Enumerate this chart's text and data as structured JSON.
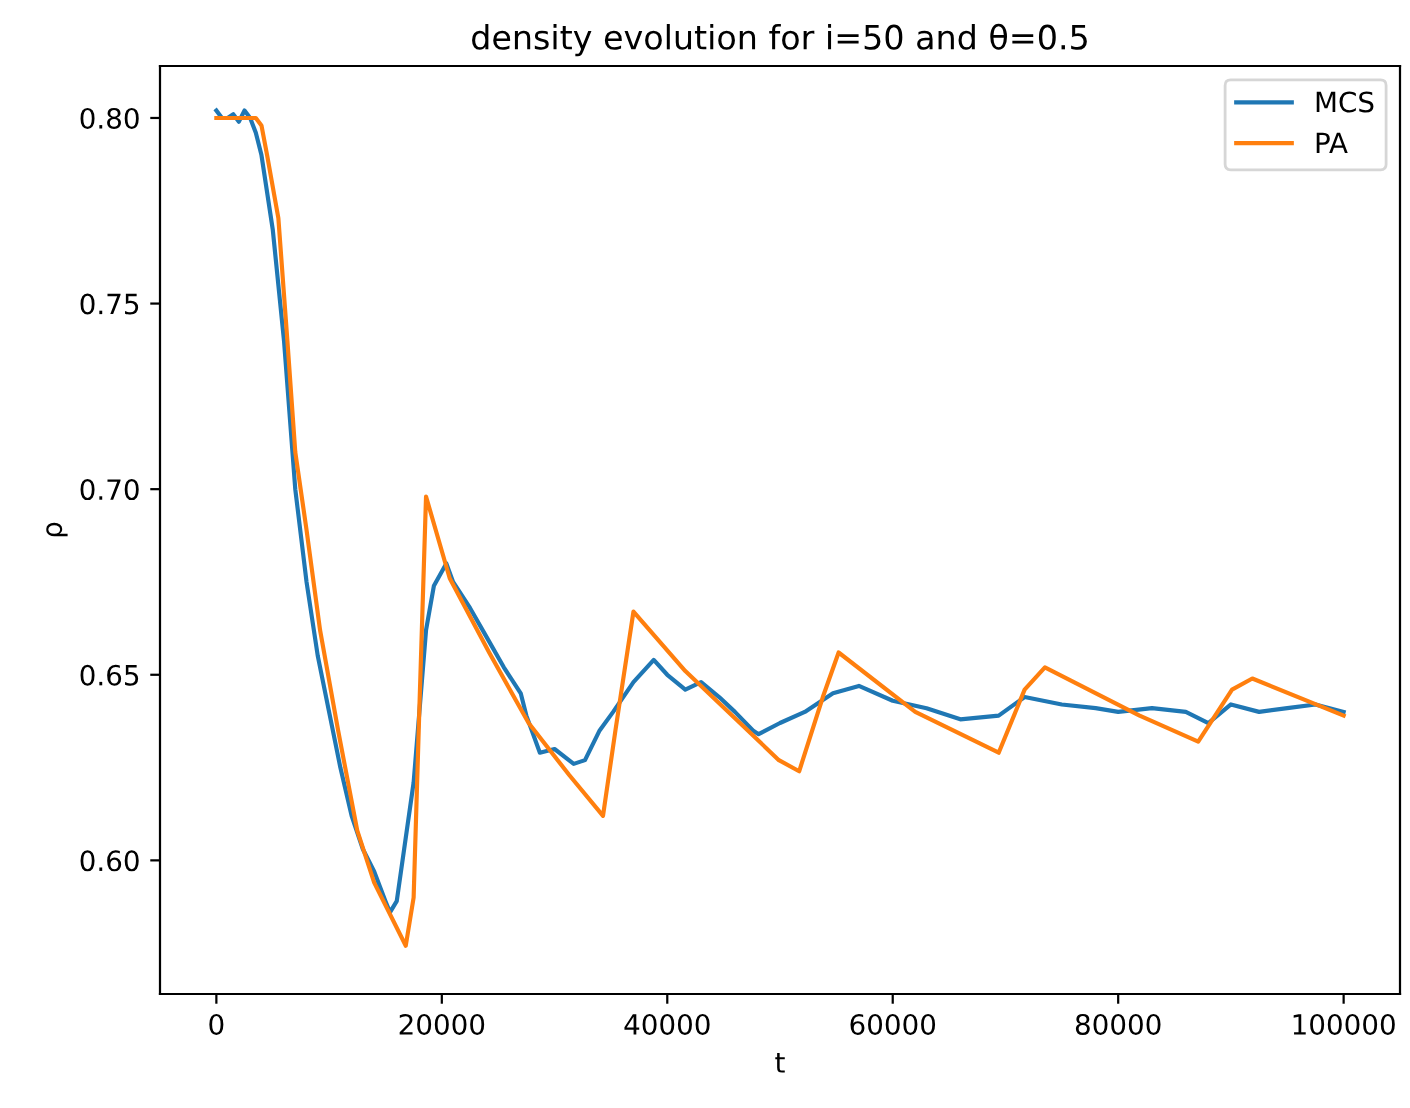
{
  "chart_data": {
    "type": "line",
    "title": "density evolution for i=50 and θ=0.5",
    "xlabel": "t",
    "ylabel": "ρ",
    "xlim": [
      -5000,
      105000
    ],
    "ylim": [
      0.564,
      0.814
    ],
    "xticks": [
      0,
      20000,
      40000,
      60000,
      80000,
      100000
    ],
    "yticks": [
      {
        "value": 0.6,
        "label": "0.60"
      },
      {
        "value": 0.65,
        "label": "0.65"
      },
      {
        "value": 0.7,
        "label": "0.70"
      },
      {
        "value": 0.75,
        "label": "0.75"
      },
      {
        "value": 0.8,
        "label": "0.80"
      }
    ],
    "grid": false,
    "legend": "top right",
    "line_style": "solid",
    "marker": "none",
    "series": [
      {
        "name": "MCS",
        "color": "#1f77b4",
        "x": [
          0,
          500,
          1000,
          1500,
          2000,
          2500,
          3000,
          3500,
          4000,
          5000,
          6000,
          7000,
          8000,
          9000,
          10000,
          11000,
          12000,
          13000,
          14000,
          15000,
          15400,
          16000,
          17500,
          18600,
          19300,
          20400,
          21000,
          22500,
          24000,
          25500,
          27000,
          27500,
          28700,
          30000,
          31700,
          32700,
          34000,
          35200,
          37000,
          38800,
          40000,
          41600,
          43000,
          44600,
          46000,
          47600,
          48100,
          50000,
          52200,
          54700,
          57000,
          60000,
          63000,
          66000,
          69400,
          71700,
          75000,
          78000,
          80000,
          83000,
          86000,
          88000,
          90000,
          92500,
          95000,
          97500,
          100000
        ],
        "values": [
          0.802,
          0.8,
          0.8,
          0.801,
          0.799,
          0.802,
          0.8,
          0.796,
          0.79,
          0.77,
          0.74,
          0.7,
          0.675,
          0.655,
          0.64,
          0.625,
          0.612,
          0.603,
          0.597,
          0.589,
          0.586,
          0.589,
          0.621,
          0.662,
          0.674,
          0.68,
          0.675,
          0.668,
          0.66,
          0.652,
          0.645,
          0.639,
          0.629,
          0.63,
          0.626,
          0.627,
          0.635,
          0.64,
          0.648,
          0.654,
          0.65,
          0.646,
          0.648,
          0.644,
          0.64,
          0.635,
          0.634,
          0.637,
          0.64,
          0.645,
          0.647,
          0.643,
          0.641,
          0.638,
          0.639,
          0.644,
          0.642,
          0.641,
          0.64,
          0.641,
          0.64,
          0.637,
          0.642,
          0.64,
          0.641,
          0.642,
          0.64
        ]
      },
      {
        "name": "PA",
        "color": "#ff7f0e",
        "x": [
          0,
          2000,
          3500,
          4000,
          4500,
          5500,
          6300,
          7000,
          8000,
          9200,
          10800,
          12500,
          14000,
          16800,
          17500,
          18000,
          18600,
          20700,
          24200,
          27700,
          31300,
          34300,
          35400,
          37000,
          41600,
          49900,
          51700,
          53800,
          55200,
          62000,
          69400,
          71700,
          73500,
          81900,
          87100,
          90100,
          91900,
          100000
        ],
        "values": [
          0.8,
          0.8,
          0.8,
          0.798,
          0.79,
          0.773,
          0.74,
          0.71,
          0.689,
          0.662,
          0.635,
          0.608,
          0.594,
          0.577,
          0.59,
          0.64,
          0.698,
          0.676,
          0.656,
          0.637,
          0.623,
          0.612,
          0.635,
          0.667,
          0.651,
          0.627,
          0.624,
          0.644,
          0.656,
          0.64,
          0.629,
          0.646,
          0.652,
          0.639,
          0.632,
          0.646,
          0.649,
          0.639
        ]
      }
    ]
  }
}
